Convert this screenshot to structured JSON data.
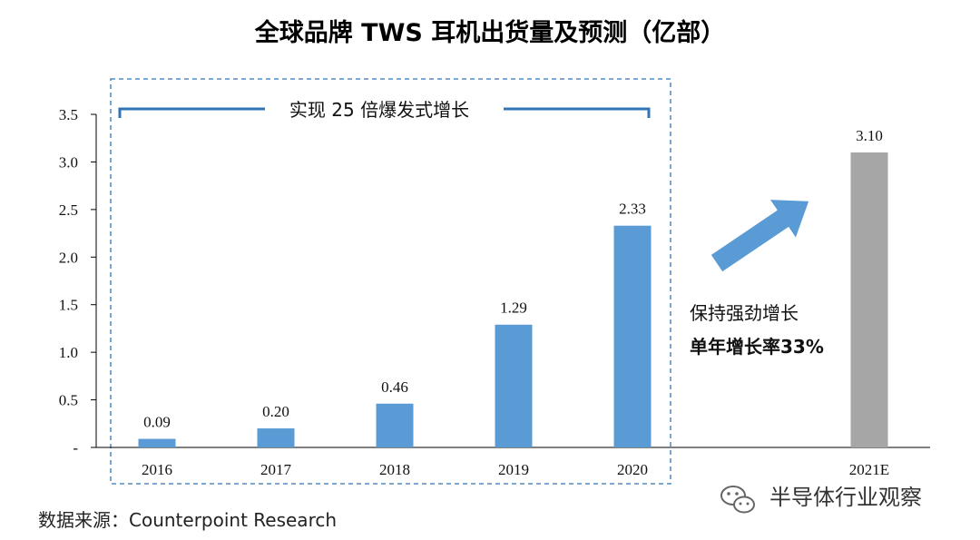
{
  "chart_data": {
    "type": "bar",
    "title": "全球品牌 TWS 耳机出货量及预测（亿部）",
    "categories": [
      "2016",
      "2017",
      "2018",
      "2019",
      "2020",
      "2021E"
    ],
    "values": [
      0.09,
      0.2,
      0.46,
      1.29,
      2.33,
      3.1
    ],
    "value_labels": [
      "0.09",
      "0.20",
      "0.46",
      "1.29",
      "2.33",
      "3.10"
    ],
    "bar_colors": [
      "#5b9bd5",
      "#5b9bd5",
      "#5b9bd5",
      "#5b9bd5",
      "#5b9bd5",
      "#a6a6a6"
    ],
    "y_ticks": [
      "-",
      "0.5",
      "1.0",
      "1.5",
      "2.0",
      "2.5",
      "3.0",
      "3.5"
    ],
    "ylim": [
      0,
      3.5
    ],
    "grid": false,
    "annotations": {
      "bracket_text": "实现 25 倍爆发式增长",
      "growth_line1": "保持强劲增长",
      "growth_line2": "单年增长率33%"
    }
  },
  "source": "数据来源：Counterpoint Research",
  "watermark": "半导体行业观察",
  "colors": {
    "bar": "#5b9bd5",
    "forecast_bar": "#a6a6a6",
    "arrow": "#5b9bd5",
    "bracket": "#2e75b6"
  }
}
